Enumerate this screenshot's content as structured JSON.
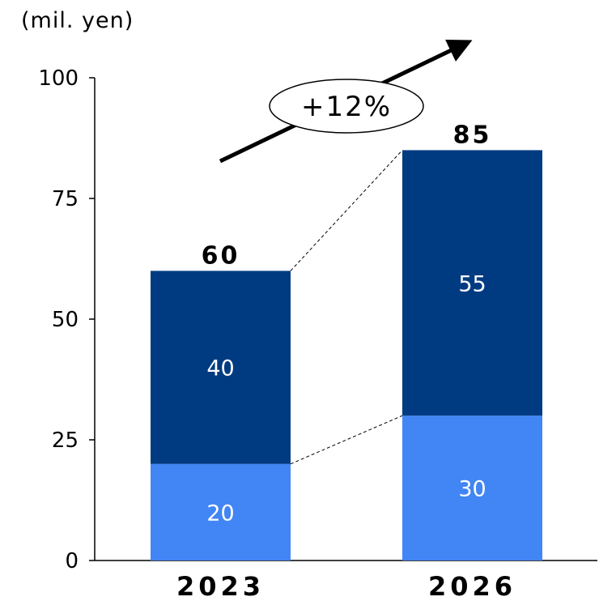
{
  "chart_data": {
    "type": "bar",
    "stacked": true,
    "unit_label": "(mil. yen)",
    "categories": [
      "2023",
      "2026"
    ],
    "series": [
      {
        "values": [
          20,
          30
        ],
        "color": "#4285f4"
      },
      {
        "values": [
          40,
          55
        ],
        "color": "#003b82"
      }
    ],
    "totals": [
      "60",
      "85"
    ],
    "segment_labels": [
      [
        "20",
        "40"
      ],
      [
        "30",
        "55"
      ]
    ],
    "ylim": [
      0,
      100
    ],
    "yticks": [
      "0",
      "25",
      "50",
      "75",
      "100"
    ],
    "growth_label": "+12%",
    "grid": false
  }
}
